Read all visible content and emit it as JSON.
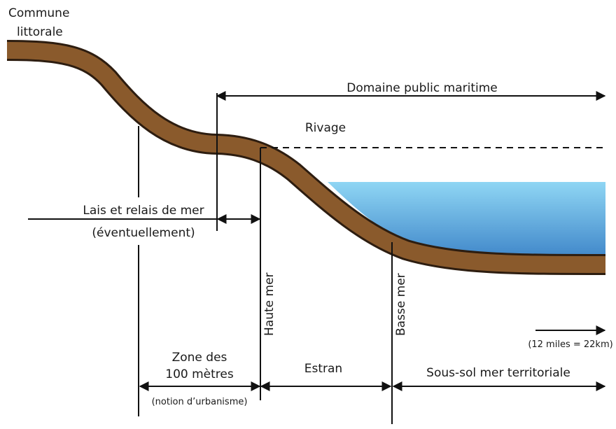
{
  "commune": [
    "Commune",
    "littorale"
  ],
  "domaine": "Domaine public maritime",
  "rivage": "Rivage",
  "lais": [
    "Lais et relais de mer",
    "(éventuellement)"
  ],
  "haute_mer": "Haute mer",
  "basse_mer": "Basse mer",
  "scale": "(12 miles = 22km)",
  "zone": [
    "Zone des",
    "100 mètres",
    "(notion d’urbanisme)"
  ],
  "estran": "Estran",
  "sous_sol": "Sous-sol mer territoriale"
}
